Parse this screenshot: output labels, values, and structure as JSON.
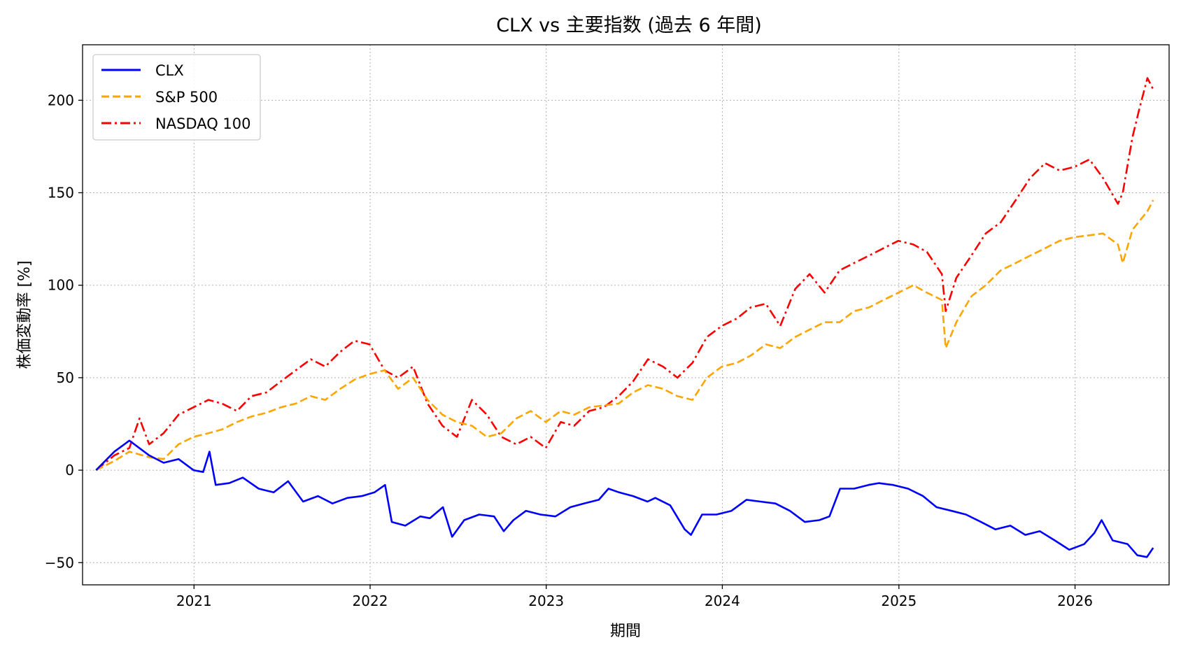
{
  "chart_data": {
    "type": "line",
    "title": "CLX vs 主要指数 (過去 6 年間)",
    "xlabel": "期間",
    "ylabel": "株価変動率 [%]",
    "xlim": [
      "2020-05-15",
      "2026-07-15"
    ],
    "ylim": [
      -62,
      230
    ],
    "grid": true,
    "legend_position": "top-left",
    "x_ticks": [
      "2021",
      "2022",
      "2023",
      "2024",
      "2025",
      "2026"
    ],
    "y_ticks": [
      -50,
      0,
      50,
      100,
      150,
      200
    ],
    "series": [
      {
        "name": "CLX",
        "color": "#0000ff",
        "style": "solid",
        "x": [
          "2020-06-12",
          "2020-07-20",
          "2020-08-20",
          "2020-09-30",
          "2020-10-30",
          "2020-11-30",
          "2020-12-31",
          "2021-01-20",
          "2021-02-02",
          "2021-02-15",
          "2021-03-15",
          "2021-04-12",
          "2021-05-15",
          "2021-06-15",
          "2021-07-15",
          "2021-08-15",
          "2021-09-15",
          "2021-10-15",
          "2021-11-15",
          "2021-12-15",
          "2022-01-10",
          "2022-02-01",
          "2022-02-15",
          "2022-03-15",
          "2022-04-15",
          "2022-05-05",
          "2022-06-01",
          "2022-06-20",
          "2022-07-15",
          "2022-08-15",
          "2022-09-15",
          "2022-10-05",
          "2022-10-25",
          "2022-11-20",
          "2022-12-20",
          "2023-01-20",
          "2023-02-20",
          "2023-03-20",
          "2023-04-20",
          "2023-05-10",
          "2023-06-01",
          "2023-06-30",
          "2023-07-30",
          "2023-08-15",
          "2023-09-15",
          "2023-10-15",
          "2023-10-28",
          "2023-11-20",
          "2023-12-20",
          "2024-01-20",
          "2024-02-20",
          "2024-03-20",
          "2024-04-20",
          "2024-05-20",
          "2024-06-20",
          "2024-07-20",
          "2024-08-10",
          "2024-09-01",
          "2024-09-30",
          "2024-10-30",
          "2024-11-20",
          "2024-12-20",
          "2025-01-20",
          "2025-02-20",
          "2025-03-20",
          "2025-04-20",
          "2025-05-20",
          "2025-06-20",
          "2025-07-20",
          "2025-08-20",
          "2025-09-20",
          "2025-10-20",
          "2025-11-20",
          "2025-12-20",
          "2026-01-20",
          "2026-02-10",
          "2026-02-25",
          "2026-03-20",
          "2026-04-20",
          "2026-05-10",
          "2026-05-30",
          "2026-06-12"
        ],
        "values": [
          0,
          10,
          16,
          8,
          4,
          6,
          0,
          -1,
          10,
          -8,
          -7,
          -4,
          -10,
          -12,
          -6,
          -17,
          -14,
          -18,
          -15,
          -14,
          -12,
          -8,
          -28,
          -30,
          -25,
          -26,
          -20,
          -36,
          -27,
          -24,
          -25,
          -33,
          -27,
          -22,
          -24,
          -25,
          -20,
          -18,
          -16,
          -10,
          -12,
          -14,
          -17,
          -15,
          -19,
          -32,
          -35,
          -24,
          -24,
          -22,
          -16,
          -17,
          -18,
          -22,
          -28,
          -27,
          -25,
          -10,
          -10,
          -8,
          -7,
          -8,
          -10,
          -14,
          -20,
          -22,
          -24,
          -28,
          -32,
          -30,
          -35,
          -33,
          -38,
          -43,
          -40,
          -34,
          -27,
          -38,
          -40,
          -46,
          -47,
          -42
        ]
      },
      {
        "name": "S&P 500",
        "color": "#ffa500",
        "style": "dashed",
        "x": [
          "2020-06-12",
          "2020-07-20",
          "2020-08-20",
          "2020-09-30",
          "2020-10-30",
          "2020-11-30",
          "2020-12-31",
          "2021-01-31",
          "2021-02-28",
          "2021-03-31",
          "2021-04-30",
          "2021-05-31",
          "2021-06-30",
          "2021-07-31",
          "2021-08-31",
          "2021-09-30",
          "2021-10-31",
          "2021-11-30",
          "2021-12-31",
          "2022-01-31",
          "2022-02-28",
          "2022-03-31",
          "2022-04-30",
          "2022-05-31",
          "2022-06-30",
          "2022-07-31",
          "2022-08-31",
          "2022-09-30",
          "2022-10-31",
          "2022-11-30",
          "2022-12-31",
          "2023-01-31",
          "2023-02-28",
          "2023-03-31",
          "2023-04-30",
          "2023-05-31",
          "2023-06-30",
          "2023-07-31",
          "2023-08-31",
          "2023-09-30",
          "2023-10-31",
          "2023-11-30",
          "2023-12-31",
          "2024-01-31",
          "2024-02-29",
          "2024-03-31",
          "2024-04-30",
          "2024-05-31",
          "2024-06-30",
          "2024-07-31",
          "2024-08-31",
          "2024-09-30",
          "2024-10-31",
          "2024-11-30",
          "2024-12-31",
          "2025-01-31",
          "2025-02-28",
          "2025-03-31",
          "2025-04-08",
          "2025-04-30",
          "2025-05-31",
          "2025-06-30",
          "2025-07-31",
          "2025-08-31",
          "2025-09-30",
          "2025-10-31",
          "2025-11-30",
          "2025-12-31",
          "2026-01-31",
          "2026-02-28",
          "2026-03-31",
          "2026-04-10",
          "2026-04-30",
          "2026-05-31",
          "2026-06-12"
        ],
        "values": [
          0,
          5,
          10,
          7,
          6,
          14,
          18,
          20,
          22,
          26,
          29,
          31,
          34,
          36,
          40,
          38,
          44,
          49,
          52,
          54,
          44,
          50,
          38,
          30,
          26,
          24,
          18,
          20,
          28,
          32,
          26,
          32,
          30,
          34,
          35,
          36,
          42,
          46,
          44,
          40,
          38,
          50,
          56,
          58,
          62,
          68,
          66,
          72,
          76,
          80,
          80,
          86,
          88,
          92,
          96,
          100,
          96,
          92,
          66,
          80,
          94,
          100,
          108,
          112,
          116,
          120,
          124,
          126,
          127,
          128,
          122,
          112,
          130,
          140,
          146
        ]
      },
      {
        "name": "NASDAQ 100",
        "color": "#ff0000",
        "style": "dashdot",
        "x": [
          "2020-06-12",
          "2020-07-20",
          "2020-08-20",
          "2020-09-10",
          "2020-09-30",
          "2020-10-30",
          "2020-11-30",
          "2020-12-31",
          "2021-01-31",
          "2021-02-28",
          "2021-03-31",
          "2021-04-30",
          "2021-05-31",
          "2021-06-30",
          "2021-07-31",
          "2021-08-31",
          "2021-09-30",
          "2021-10-31",
          "2021-11-30",
          "2021-12-31",
          "2022-01-31",
          "2022-02-28",
          "2022-03-31",
          "2022-04-30",
          "2022-05-31",
          "2022-06-30",
          "2022-07-31",
          "2022-08-31",
          "2022-09-30",
          "2022-10-31",
          "2022-11-30",
          "2022-12-31",
          "2023-01-31",
          "2023-02-28",
          "2023-03-31",
          "2023-04-30",
          "2023-05-31",
          "2023-06-30",
          "2023-07-31",
          "2023-08-31",
          "2023-09-30",
          "2023-10-31",
          "2023-11-30",
          "2023-12-31",
          "2024-01-31",
          "2024-02-29",
          "2024-03-31",
          "2024-04-30",
          "2024-05-31",
          "2024-06-30",
          "2024-07-31",
          "2024-08-31",
          "2024-09-30",
          "2024-10-31",
          "2024-11-30",
          "2024-12-31",
          "2025-01-31",
          "2025-02-28",
          "2025-03-31",
          "2025-04-08",
          "2025-04-30",
          "2025-05-31",
          "2025-06-30",
          "2025-07-31",
          "2025-08-31",
          "2025-09-30",
          "2025-10-31",
          "2025-11-30",
          "2025-12-31",
          "2026-01-31",
          "2026-02-28",
          "2026-03-31",
          "2026-04-10",
          "2026-04-30",
          "2026-05-15",
          "2026-05-31",
          "2026-06-12"
        ],
        "values": [
          0,
          8,
          12,
          28,
          14,
          20,
          30,
          34,
          38,
          36,
          32,
          40,
          42,
          48,
          54,
          60,
          56,
          64,
          70,
          68,
          54,
          50,
          56,
          36,
          24,
          18,
          38,
          30,
          18,
          14,
          18,
          12,
          26,
          24,
          32,
          34,
          40,
          48,
          60,
          56,
          50,
          58,
          72,
          78,
          82,
          88,
          90,
          78,
          98,
          106,
          96,
          108,
          112,
          116,
          120,
          124,
          122,
          118,
          106,
          86,
          104,
          116,
          128,
          134,
          146,
          158,
          166,
          162,
          164,
          168,
          158,
          144,
          150,
          180,
          196,
          212,
          206
        ]
      }
    ]
  }
}
